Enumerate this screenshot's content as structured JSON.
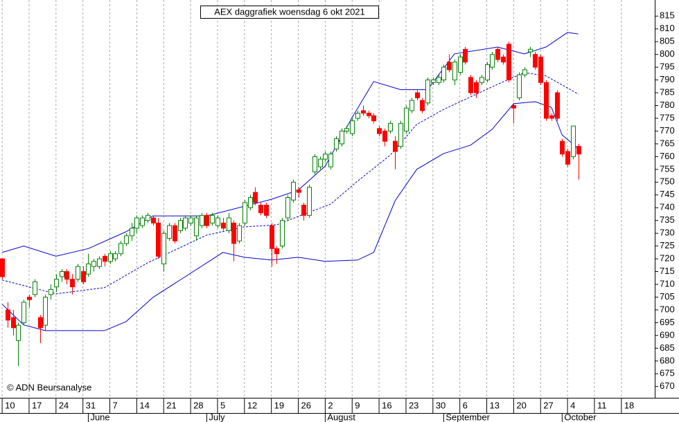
{
  "chart_data": {
    "type": "candlestick",
    "title": "AEX daggrafiek woensdag 6 okt 2021",
    "copyright": "© ADN Beursanalyse",
    "up_color": "#008000",
    "down_color": "#ff0000",
    "open": [
      720,
      700,
      697,
      688,
      695,
      705,
      706,
      697,
      694,
      706,
      709,
      713,
      715,
      712,
      712,
      715,
      714,
      717,
      717,
      721,
      719,
      720,
      722,
      726,
      729,
      732,
      733,
      735,
      736,
      734,
      718,
      728,
      733,
      731,
      732,
      734,
      729,
      733,
      737,
      734,
      733,
      734,
      731,
      734,
      727,
      734,
      740,
      746,
      741,
      741,
      733,
      724,
      725,
      736,
      743,
      747,
      741,
      737,
      754,
      756,
      759,
      756,
      763,
      765,
      770,
      769,
      775,
      778,
      777,
      776,
      771,
      770,
      770,
      766,
      764,
      770,
      778,
      785,
      782,
      781,
      789,
      789,
      790,
      797,
      790,
      793,
      802,
      791,
      789,
      789,
      790,
      795,
      802,
      799,
      804,
      780,
      783,
      792,
      801,
      800,
      799,
      789,
      776,
      785,
      766,
      762,
      760,
      764
    ],
    "high": [
      720,
      703,
      700,
      695,
      704,
      706,
      712,
      698,
      706,
      710,
      714,
      716,
      716,
      714,
      718,
      717,
      722,
      720,
      721,
      722,
      723,
      723,
      727,
      730,
      734,
      737,
      737,
      738,
      737,
      736,
      731,
      734,
      734,
      736,
      737,
      737,
      737,
      738,
      738,
      738,
      737,
      736,
      738,
      735,
      734,
      743,
      745,
      748,
      742,
      742,
      734,
      725,
      736,
      745,
      751,
      748,
      742,
      749,
      761,
      760,
      762,
      762,
      768,
      771,
      772,
      775,
      778,
      780,
      778,
      777,
      772,
      771,
      774,
      768,
      774,
      780,
      783,
      786,
      783,
      791,
      791,
      792,
      796,
      800,
      798,
      800,
      803,
      792,
      790,
      792,
      797,
      801,
      803,
      800,
      805,
      781,
      793,
      795,
      803,
      801,
      800,
      790,
      777,
      786,
      767,
      763,
      772,
      765
    ],
    "low": [
      712,
      693,
      690,
      678,
      694,
      701,
      705,
      687,
      692,
      704,
      707,
      711,
      710,
      706,
      711,
      710,
      713,
      715,
      716,
      717,
      718,
      719,
      721,
      725,
      727,
      730,
      732,
      734,
      733,
      720,
      715,
      727,
      726,
      730,
      731,
      733,
      727,
      732,
      732,
      733,
      732,
      731,
      730,
      719,
      726,
      733,
      739,
      741,
      737,
      736,
      717,
      718,
      724,
      735,
      742,
      744,
      735,
      736,
      753,
      755,
      758,
      755,
      762,
      764,
      769,
      768,
      774,
      776,
      775,
      773,
      768,
      764,
      769,
      755,
      763,
      769,
      777,
      782,
      777,
      780,
      788,
      788,
      789,
      793,
      788,
      792,
      796,
      784,
      783,
      788,
      789,
      794,
      797,
      796,
      789,
      773,
      782,
      791,
      799,
      794,
      788,
      774,
      774,
      774,
      760,
      756,
      759,
      751
    ],
    "close": [
      713,
      696,
      693,
      694,
      703,
      704,
      711,
      693,
      705,
      708,
      712,
      715,
      712,
      709,
      717,
      711,
      718,
      719,
      720,
      719,
      722,
      722,
      726,
      729,
      732,
      736,
      736,
      737,
      734,
      721,
      730,
      733,
      727,
      735,
      736,
      736,
      736,
      737,
      733,
      737,
      736,
      732,
      736,
      726,
      733,
      742,
      744,
      742,
      738,
      737,
      724,
      722,
      735,
      744,
      750,
      746,
      737,
      748,
      760,
      759,
      761,
      761,
      767,
      770,
      771,
      774,
      777,
      777,
      776,
      774,
      769,
      766,
      773,
      762,
      773,
      779,
      782,
      783,
      778,
      790,
      790,
      791,
      795,
      794,
      797,
      799,
      797,
      785,
      785,
      791,
      796,
      800,
      798,
      797,
      790,
      779,
      792,
      794,
      802,
      795,
      789,
      775,
      775,
      775,
      761,
      757,
      772,
      761
    ],
    "bands": [
      {
        "color": "#0000cc",
        "dashed": false,
        "x": [
          0,
          4,
          10,
          16,
          23,
          28,
          38,
          50,
          55,
          60,
          65,
          69,
          74,
          79,
          84,
          92,
          97,
          101,
          105,
          107
        ],
        "values": [
          722.5,
          725,
          721,
          724,
          730.6,
          736.8,
          736.8,
          743.3,
          746.9,
          756.3,
          775.3,
          789.4,
          786.2,
          786.2,
          800.2,
          802.9,
          800.2,
          802.9,
          808.6,
          808
        ]
      },
      {
        "color": "#0000cc",
        "dashed": true,
        "x": [
          0,
          10,
          19,
          27,
          38,
          45,
          51,
          56,
          61,
          66,
          72,
          77,
          82,
          87,
          92,
          97,
          101,
          107
        ],
        "values": [
          711.7,
          706.3,
          708.7,
          718.4,
          729.3,
          732.5,
          733.3,
          737.4,
          741.4,
          750.4,
          760.4,
          772.6,
          778.5,
          783.4,
          788.3,
          792.9,
          791.6,
          784.5
        ]
      },
      {
        "color": "#0000cc",
        "dashed": false,
        "x": [
          0,
          4,
          8,
          19,
          23,
          28,
          34,
          41,
          45,
          50,
          55,
          60,
          66,
          69,
          73,
          77,
          82,
          87,
          91,
          95,
          99,
          102,
          104,
          107
        ],
        "values": [
          702.2,
          694.1,
          691.9,
          691.9,
          695.4,
          704.9,
          713,
          722.5,
          720.6,
          719.5,
          720.6,
          719,
          719.5,
          722.5,
          742.8,
          755,
          761.2,
          764.5,
          770.7,
          780.7,
          781.5,
          779.3,
          768.5,
          763.1
        ]
      }
    ],
    "xlim": [
      -0.4,
      121.2
    ],
    "xticks": [
      {
        "value": 0,
        "label": "10"
      },
      {
        "value": 5,
        "label": "17"
      },
      {
        "value": 10,
        "label": "24"
      },
      {
        "value": 15,
        "label": "31"
      },
      {
        "value": 20,
        "label": "7"
      },
      {
        "value": 25,
        "label": "14"
      },
      {
        "value": 30,
        "label": "21"
      },
      {
        "value": 35,
        "label": "28"
      },
      {
        "value": 40,
        "label": "5"
      },
      {
        "value": 45,
        "label": "12"
      },
      {
        "value": 50,
        "label": "19"
      },
      {
        "value": 55,
        "label": "26"
      },
      {
        "value": 60,
        "label": "2"
      },
      {
        "value": 65,
        "label": "9"
      },
      {
        "value": 70,
        "label": "16"
      },
      {
        "value": 75,
        "label": "23"
      },
      {
        "value": 80,
        "label": "30"
      },
      {
        "value": 85,
        "label": "6"
      },
      {
        "value": 90,
        "label": "13"
      },
      {
        "value": 95,
        "label": "20"
      },
      {
        "value": 100,
        "label": "27"
      },
      {
        "value": 105,
        "label": "4"
      },
      {
        "value": 110,
        "label": "11"
      },
      {
        "value": 115,
        "label": "18"
      }
    ],
    "months": [
      {
        "value": 16,
        "label": "June"
      },
      {
        "value": 38,
        "label": "July"
      },
      {
        "value": 60,
        "label": "August"
      },
      {
        "value": 82,
        "label": "September"
      },
      {
        "value": 104,
        "label": "October"
      }
    ],
    "ylim": [
      665.6,
      821.3
    ],
    "yticks": [
      670,
      675,
      680,
      685,
      690,
      695,
      700,
      705,
      710,
      715,
      720,
      725,
      730,
      735,
      740,
      745,
      750,
      755,
      760,
      765,
      770,
      775,
      780,
      785,
      790,
      795,
      800,
      805,
      810,
      815
    ],
    "grid": true
  }
}
